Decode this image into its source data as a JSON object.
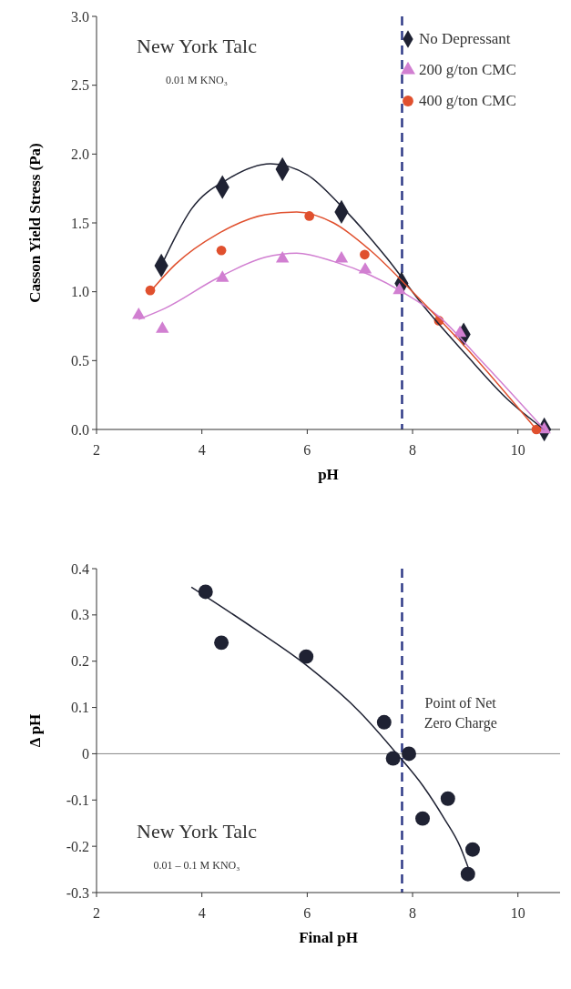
{
  "chart_data": [
    {
      "type": "scatter",
      "xlabel": "pH",
      "ylabel": "Casson Yield Stress (Pa)",
      "xlim": [
        2,
        10.8
      ],
      "xticks": [
        2,
        4,
        6,
        8,
        10
      ],
      "ylim": [
        0,
        3
      ],
      "yticks": [
        {
          "value": 0,
          "label": "0.0"
        },
        0.5,
        {
          "value": 1,
          "label": "1.0"
        },
        1.5,
        {
          "value": 2,
          "label": "2.0"
        },
        2.5,
        {
          "value": 3,
          "label": "3.0"
        }
      ],
      "legend": "top right",
      "annotations": [
        "New York Talc",
        "0.01 M KNO₃"
      ],
      "ref_lines": [
        {
          "axis": "x",
          "value": 7.8,
          "color": "#2e3a87",
          "line_style": "dashed"
        }
      ],
      "series": [
        {
          "name": "No Depressant",
          "color": "#1f2233",
          "marker": "diamond",
          "x": [
            3.23,
            4.39,
            5.53,
            6.65,
            7.79,
            8.97,
            10.5
          ],
          "values": [
            1.19,
            1.76,
            1.89,
            1.58,
            1.06,
            0.69,
            0.0
          ]
        },
        {
          "name": "200 g/ton CMC",
          "color": "#d17fd1",
          "marker": "triangle",
          "x": [
            2.8,
            3.25,
            4.39,
            5.53,
            6.65,
            7.1,
            7.75,
            8.9,
            10.5
          ],
          "values": [
            0.83,
            0.73,
            1.1,
            1.24,
            1.24,
            1.16,
            1.01,
            0.7,
            0.0
          ]
        },
        {
          "name": "400 g/ton CMC",
          "color": "#e0502e",
          "marker": "circle",
          "x": [
            3.02,
            4.37,
            6.04,
            7.09,
            8.5,
            10.35
          ],
          "values": [
            1.01,
            1.3,
            1.55,
            1.27,
            0.79,
            0.0
          ]
        },
        {
          "type": "line",
          "color": "#1f2233",
          "x": [
            3.23,
            3.8,
            4.5,
            5.3,
            6,
            6.7,
            7.5,
            8.2,
            9,
            9.8,
            10.5
          ],
          "values": [
            1.19,
            1.6,
            1.82,
            1.93,
            1.85,
            1.6,
            1.25,
            0.9,
            0.55,
            0.22,
            0.0
          ]
        },
        {
          "type": "line",
          "color": "#d17fd1",
          "x": [
            2.8,
            3.3,
            4.3,
            5.2,
            5.8,
            6.5,
            7.2,
            7.8,
            8.5,
            9.3,
            10.5
          ],
          "values": [
            0.8,
            0.88,
            1.1,
            1.25,
            1.28,
            1.22,
            1.12,
            1.0,
            0.82,
            0.5,
            0.0
          ]
        },
        {
          "type": "line",
          "color": "#e0502e",
          "x": [
            3.02,
            3.5,
            4.3,
            5.2,
            5.8,
            6.5,
            7.2,
            8,
            9,
            10.35
          ],
          "values": [
            1.0,
            1.2,
            1.42,
            1.56,
            1.58,
            1.5,
            1.3,
            1.0,
            0.6,
            0.0
          ]
        }
      ]
    },
    {
      "type": "scatter",
      "xlabel": "Final pH",
      "ylabel": "Δ pH",
      "xlim": [
        2,
        10.8
      ],
      "xticks": [
        2,
        4,
        6,
        8,
        10
      ],
      "ylim": [
        -0.3,
        0.4
      ],
      "yticks": [
        -0.3,
        -0.2,
        -0.1,
        0,
        0.1,
        0.2,
        0.3,
        0.4
      ],
      "annotations": [
        "New York Talc",
        "0.01 – 0.1 M KNO₃",
        {
          "text": "Point of Net Zero Charge",
          "x": 7.7,
          "y": 0
        }
      ],
      "ref_lines": [
        {
          "axis": "x",
          "value": 7.8,
          "color": "#2e3a87",
          "line_style": "dashed"
        },
        {
          "axis": "y",
          "value": 0,
          "color": "#888888",
          "line_style": "solid"
        }
      ],
      "series": [
        {
          "color": "#1f2233",
          "marker": "circle",
          "x": [
            4.07,
            4.37,
            5.98,
            7.46,
            7.63,
            7.93,
            8.19,
            8.67,
            9.14,
            9.05
          ],
          "values": [
            0.35,
            0.24,
            0.21,
            0.068,
            -0.01,
            0.0,
            -0.14,
            -0.097,
            -0.207,
            -0.26
          ]
        },
        {
          "type": "line",
          "color": "#1f2233",
          "x": [
            3.8,
            5,
            6,
            7,
            7.7,
            8.2,
            8.6,
            8.9,
            9.1
          ],
          "values": [
            0.36,
            0.27,
            0.19,
            0.09,
            0.0,
            -0.07,
            -0.14,
            -0.2,
            -0.26
          ]
        }
      ]
    }
  ]
}
